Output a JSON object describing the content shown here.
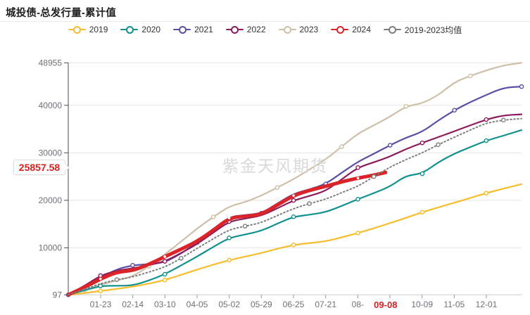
{
  "header": {
    "title": "城投债-总发行量-累计值"
  },
  "watermark": "紫金天风期货",
  "annotation": {
    "latest_value_label": "25857.58",
    "latest_date_label": "09-08",
    "highlight_color": "#db2020"
  },
  "colors": {
    "grid": "#e3e3e3",
    "axis_line": "#4d4d4d",
    "x_axis_line": "#cccccc",
    "tick_label": "#6e7079",
    "legend_label": "#333333"
  },
  "chart_data": {
    "type": "line",
    "title": "城投债-总发行量-累计值",
    "xlabel": "",
    "ylabel": "",
    "grid": true,
    "legend_position": "top",
    "y_axis": {
      "min": 97,
      "max": 48955,
      "ticks": [
        {
          "value": 97,
          "label": "97"
        },
        {
          "value": 10000,
          "label": "10000"
        },
        {
          "value": 20000,
          "label": "20000"
        },
        {
          "value": 30000,
          "label": "30000"
        },
        {
          "value": 40000,
          "label": "40000"
        },
        {
          "value": 48955,
          "label": "48955"
        }
      ]
    },
    "x_axis": {
      "tick_labels": [
        "01-23",
        "02-14",
        "03-10",
        "04-05",
        "05-02",
        "05-29",
        "06-25",
        "07-21",
        "08-",
        "",
        "10-09",
        "11-05",
        "12-01"
      ],
      "note": "label at index 9 (09-12) hidden, replaced by red current-date annotation 09-08"
    },
    "current_point": {
      "date": "09-08",
      "value": 25857.58,
      "series": "2024",
      "t": 0.7
    },
    "series": [
      {
        "name": "2019",
        "color": "#f7bd2b",
        "width": 2.2,
        "dash": null,
        "marker_every": 4,
        "marker_offset": 2,
        "t": [
          0,
          0.036,
          0.071,
          0.107,
          0.142,
          0.178,
          0.213,
          0.249,
          0.284,
          0.32,
          0.355,
          0.39,
          0.426,
          0.461,
          0.497,
          0.532,
          0.568,
          0.603,
          0.639,
          0.674,
          0.71,
          0.745,
          0.781,
          0.816,
          0.852,
          0.887,
          0.922,
          0.96,
          1
        ],
        "values": [
          97,
          450,
          900,
          1350,
          1800,
          2450,
          3200,
          4300,
          5400,
          6450,
          7400,
          8150,
          8900,
          9800,
          10600,
          11000,
          11350,
          12200,
          13100,
          14100,
          15200,
          16300,
          17500,
          18500,
          19500,
          20500,
          21500,
          22450,
          23400
        ]
      },
      {
        "name": "2020",
        "color": "#11918d",
        "width": 2.2,
        "dash": null,
        "marker_every": 4,
        "marker_offset": 2,
        "t": [
          0,
          0.036,
          0.071,
          0.107,
          0.142,
          0.178,
          0.213,
          0.249,
          0.284,
          0.32,
          0.355,
          0.39,
          0.426,
          0.461,
          0.497,
          0.532,
          0.568,
          0.603,
          0.639,
          0.674,
          0.71,
          0.745,
          0.781,
          0.816,
          0.852,
          0.887,
          0.922,
          0.96,
          1
        ],
        "values": [
          97,
          1050,
          1970,
          2000,
          2050,
          3100,
          4435,
          6300,
          8140,
          10200,
          12090,
          12800,
          13560,
          15100,
          16530,
          16950,
          17510,
          18800,
          20230,
          21500,
          22900,
          25200,
          25600,
          28000,
          29850,
          31200,
          32560,
          33600,
          34800
        ]
      },
      {
        "name": "2021",
        "color": "#5a50a5",
        "width": 2.2,
        "dash": null,
        "marker_every": 4,
        "marker_offset": 0,
        "t": [
          0,
          0.036,
          0.071,
          0.107,
          0.142,
          0.178,
          0.213,
          0.249,
          0.284,
          0.32,
          0.355,
          0.39,
          0.426,
          0.461,
          0.497,
          0.532,
          0.568,
          0.603,
          0.639,
          0.674,
          0.71,
          0.745,
          0.781,
          0.816,
          0.852,
          0.887,
          0.922,
          0.96,
          1
        ],
        "values": [
          97,
          1800,
          3700,
          5500,
          6310,
          6550,
          6900,
          8800,
          11100,
          13800,
          16530,
          16900,
          17270,
          19300,
          21400,
          22300,
          23430,
          25800,
          28120,
          29800,
          31600,
          33200,
          34400,
          36800,
          38970,
          40700,
          42180,
          43700,
          43950
        ]
      },
      {
        "name": "2022",
        "color": "#8c1b5c",
        "width": 2.2,
        "dash": null,
        "marker_every": 4,
        "marker_offset": 2,
        "t": [
          0,
          0.036,
          0.071,
          0.107,
          0.142,
          0.178,
          0.213,
          0.249,
          0.284,
          0.32,
          0.355,
          0.39,
          0.426,
          0.461,
          0.497,
          0.532,
          0.568,
          0.603,
          0.639,
          0.674,
          0.71,
          0.745,
          0.781,
          0.816,
          0.852,
          0.887,
          0.922,
          0.96,
          1
        ],
        "values": [
          97,
          2000,
          4140,
          5200,
          5670,
          6350,
          7150,
          8900,
          10760,
          13200,
          15540,
          16150,
          16760,
          18300,
          19980,
          20900,
          21950,
          24400,
          26890,
          28000,
          29200,
          30800,
          32100,
          33300,
          34530,
          35800,
          37000,
          37900,
          38100
        ]
      },
      {
        "name": "2023",
        "color": "#cec0a8",
        "width": 2.2,
        "dash": null,
        "marker_every": 4,
        "marker_offset": 1,
        "t": [
          0,
          0.036,
          0.071,
          0.107,
          0.142,
          0.178,
          0.213,
          0.249,
          0.284,
          0.32,
          0.355,
          0.39,
          0.426,
          0.461,
          0.497,
          0.532,
          0.568,
          0.603,
          0.639,
          0.674,
          0.71,
          0.745,
          0.781,
          0.816,
          0.852,
          0.887,
          0.922,
          0.96,
          1
        ],
        "values": [
          97,
          1100,
          2215,
          3100,
          3945,
          6100,
          8630,
          11300,
          14060,
          16500,
          18750,
          19600,
          20970,
          22700,
          24420,
          26500,
          28600,
          31300,
          34040,
          35800,
          37600,
          39800,
          40400,
          42100,
          44890,
          46200,
          47360,
          48400,
          48955
        ]
      },
      {
        "name": "2024",
        "color": "#da2428",
        "width": 5,
        "dash": null,
        "marker_every": 4,
        "marker_offset": 2,
        "marker_solid": true,
        "t": [
          0,
          0.036,
          0.071,
          0.107,
          0.142,
          0.178,
          0.213,
          0.249,
          0.284,
          0.32,
          0.355,
          0.39,
          0.426,
          0.461,
          0.497,
          0.532,
          0.568,
          0.603,
          0.639,
          0.674,
          0.7
        ],
        "values": [
          97,
          1700,
          3450,
          4900,
          5180,
          6500,
          8140,
          9700,
          11350,
          13700,
          16280,
          16650,
          17000,
          19000,
          21000,
          22100,
          22940,
          23900,
          24670,
          25300,
          25857.58
        ]
      },
      {
        "name": "2019-2023均值",
        "color": "#7e7e7e",
        "width": 2,
        "dash": "1.6 3.4",
        "marker_every": 4,
        "marker_offset": 3,
        "t": [
          0,
          0.036,
          0.071,
          0.107,
          0.142,
          0.178,
          0.213,
          0.249,
          0.284,
          0.32,
          0.355,
          0.39,
          0.426,
          0.461,
          0.497,
          0.532,
          0.568,
          0.603,
          0.639,
          0.674,
          0.71,
          0.745,
          0.781,
          0.816,
          0.852,
          0.887,
          0.922,
          0.96,
          1
        ],
        "values": [
          97,
          1280,
          2470,
          3300,
          3840,
          4900,
          5915,
          7800,
          9870,
          11900,
          13810,
          14550,
          15280,
          16800,
          18250,
          19300,
          20230,
          21600,
          22940,
          25000,
          27000,
          28600,
          30000,
          31700,
          33300,
          34800,
          36260,
          36900,
          37200
        ]
      }
    ],
    "draw_order": [
      4,
      0,
      1,
      2,
      3,
      5,
      6
    ]
  }
}
